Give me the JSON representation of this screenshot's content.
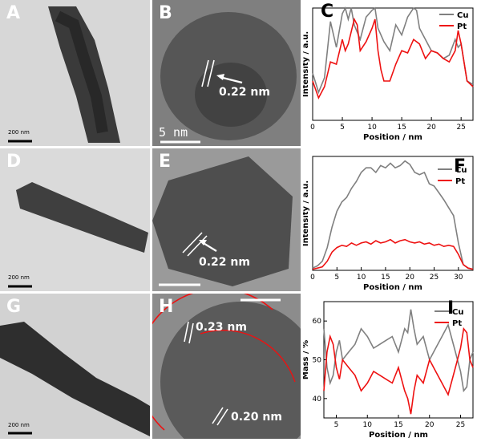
{
  "panels": {
    "A": {
      "letter": "A",
      "scale": "200 nm"
    },
    "B": {
      "letter": "B",
      "spacing": "0.22 nm",
      "scale": "5 nm"
    },
    "D": {
      "letter": "D",
      "scale": "200 nm"
    },
    "E": {
      "letter": "E",
      "spacing": "0.22 nm"
    },
    "G": {
      "letter": "G",
      "scale": "200 nm"
    },
    "H": {
      "letter": "H",
      "spacing1": "0.23 nm",
      "spacing2": "0.20 nm"
    }
  },
  "chart_data": [
    {
      "panel": "C",
      "type": "line",
      "xlabel": "Position / nm",
      "ylabel": "Intensity / a.u.",
      "xlim": [
        0,
        27
      ],
      "ylim": [
        0,
        1
      ],
      "xticks": [
        0,
        5,
        10,
        15,
        20,
        25
      ],
      "yticks": [],
      "legend": "top-right",
      "series": [
        {
          "name": "Cu",
          "color": "#808080",
          "x": [
            0,
            1,
            2,
            3,
            4,
            5,
            5.5,
            6,
            6.5,
            7,
            8,
            9,
            10,
            10.5,
            11,
            12,
            13,
            14,
            15,
            16,
            17,
            17.5,
            18,
            19,
            20,
            21,
            22,
            23,
            24,
            24.5,
            25,
            26,
            27
          ],
          "values": [
            0.42,
            0.25,
            0.38,
            0.88,
            0.65,
            0.95,
            1.0,
            0.9,
            1.0,
            0.85,
            0.72,
            0.92,
            0.98,
            1.0,
            0.82,
            0.7,
            0.62,
            0.85,
            0.76,
            0.92,
            1.0,
            0.98,
            0.82,
            0.72,
            0.62,
            0.6,
            0.55,
            0.58,
            0.72,
            0.65,
            0.68,
            0.35,
            0.32
          ]
        },
        {
          "name": "Pt",
          "color": "#ee1111",
          "x": [
            0,
            1,
            2,
            3,
            4,
            5,
            5.5,
            6,
            7,
            7.5,
            8,
            9,
            10,
            10.5,
            11,
            11.5,
            12,
            13,
            14,
            15,
            16,
            17,
            18,
            19,
            20,
            21,
            22,
            23,
            24,
            24.5,
            25,
            26,
            27
          ],
          "values": [
            0.35,
            0.2,
            0.3,
            0.52,
            0.5,
            0.72,
            0.62,
            0.68,
            0.9,
            0.85,
            0.62,
            0.7,
            0.82,
            0.9,
            0.62,
            0.45,
            0.35,
            0.35,
            0.5,
            0.62,
            0.6,
            0.72,
            0.68,
            0.55,
            0.62,
            0.6,
            0.55,
            0.52,
            0.62,
            0.8,
            0.68,
            0.35,
            0.3
          ]
        }
      ]
    },
    {
      "panel": "F",
      "type": "line",
      "xlabel": "Position / nm",
      "ylabel": "Intensity / a.u.",
      "xlim": [
        0,
        33
      ],
      "ylim": [
        0,
        1
      ],
      "xticks": [
        0,
        5,
        10,
        15,
        20,
        25,
        30
      ],
      "yticks": [],
      "legend": "top-right",
      "series": [
        {
          "name": "Cu",
          "color": "#808080",
          "x": [
            0,
            1,
            2,
            3,
            4,
            5,
            6,
            7,
            8,
            9,
            10,
            11,
            12,
            13,
            14,
            15,
            16,
            17,
            18,
            19,
            20,
            21,
            22,
            23,
            24,
            25,
            26,
            27,
            28,
            29,
            30,
            31,
            32,
            33
          ],
          "values": [
            0.02,
            0.04,
            0.08,
            0.2,
            0.38,
            0.52,
            0.6,
            0.64,
            0.72,
            0.78,
            0.86,
            0.9,
            0.9,
            0.86,
            0.92,
            0.9,
            0.94,
            0.9,
            0.92,
            0.96,
            0.93,
            0.86,
            0.84,
            0.86,
            0.76,
            0.74,
            0.68,
            0.62,
            0.55,
            0.48,
            0.24,
            0.05,
            0.02,
            0.01
          ]
        },
        {
          "name": "Pt",
          "color": "#ee1111",
          "x": [
            0,
            1,
            2,
            3,
            4,
            5,
            6,
            7,
            8,
            9,
            10,
            11,
            12,
            13,
            14,
            15,
            16,
            17,
            18,
            19,
            20,
            21,
            22,
            23,
            24,
            25,
            26,
            27,
            28,
            29,
            30,
            31,
            32,
            33
          ],
          "values": [
            0.01,
            0.02,
            0.03,
            0.08,
            0.16,
            0.2,
            0.22,
            0.21,
            0.24,
            0.22,
            0.24,
            0.25,
            0.23,
            0.26,
            0.24,
            0.25,
            0.27,
            0.24,
            0.26,
            0.27,
            0.25,
            0.24,
            0.25,
            0.23,
            0.24,
            0.22,
            0.23,
            0.21,
            0.22,
            0.21,
            0.14,
            0.05,
            0.02,
            0.01
          ]
        }
      ]
    },
    {
      "panel": "I",
      "type": "line",
      "xlabel": "Position / nm",
      "ylabel": "Mass / %",
      "xlim": [
        3,
        27
      ],
      "ylim": [
        35,
        65
      ],
      "xticks": [
        5,
        10,
        15,
        20,
        25
      ],
      "yticks": [
        40,
        50,
        60
      ],
      "legend": "top-right",
      "series": [
        {
          "name": "Cu",
          "color": "#808080",
          "x": [
            3,
            3.5,
            4,
            4.5,
            5,
            5.5,
            6,
            7,
            8,
            9,
            10,
            11,
            12,
            13,
            14,
            15,
            16,
            16.5,
            17,
            17.5,
            18,
            19,
            20,
            21,
            22,
            23,
            24,
            25,
            25.5,
            26,
            26.5,
            27
          ],
          "values": [
            58,
            48,
            44,
            46,
            52,
            55,
            50,
            52,
            54,
            58,
            56,
            53,
            54,
            55,
            56,
            52,
            58,
            57,
            63,
            58,
            54,
            56,
            50,
            53,
            56,
            59,
            53,
            47,
            42,
            43,
            50,
            52
          ]
        },
        {
          "name": "Pt",
          "color": "#ee1111",
          "x": [
            3,
            3.5,
            4,
            4.5,
            5,
            5.5,
            6,
            7,
            8,
            9,
            10,
            11,
            12,
            13,
            14,
            15,
            16,
            16.5,
            17,
            17.5,
            18,
            19,
            20,
            21,
            22,
            23,
            24,
            25,
            25.5,
            26,
            26.5,
            27
          ],
          "values": [
            42,
            52,
            56,
            54,
            48,
            45,
            50,
            48,
            46,
            42,
            44,
            47,
            46,
            45,
            44,
            48,
            42,
            40,
            36,
            42,
            46,
            44,
            50,
            47,
            44,
            41,
            47,
            53,
            58,
            57,
            50,
            48
          ]
        }
      ]
    }
  ]
}
